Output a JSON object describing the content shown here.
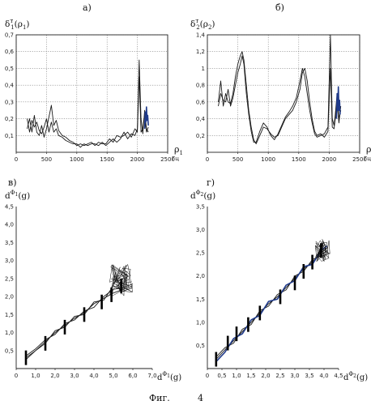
{
  "figure_caption": {
    "word": "Фиг.",
    "number": "4"
  },
  "chart_data": [
    {
      "type": "line",
      "panel_label": "а)",
      "ylabel_main": "δ",
      "ylabel_sup": "т",
      "ylabel_sub": "1",
      "ylabel_arg": "(ρ",
      "ylabel_arg_sub": "1",
      "ylabel_close": ")",
      "xlabel": "ρ",
      "xlabel_sub": "1",
      "xunit": "Гц",
      "xlim": [
        0,
        2500
      ],
      "ylim": [
        0,
        0.7
      ],
      "xticks": [
        0,
        500,
        1000,
        1500,
        2000,
        2500
      ],
      "xtick_labels": [
        "0",
        "500",
        "1000",
        "1500",
        "2000",
        "2500"
      ],
      "yticks": [
        0.1,
        0.2,
        0.3,
        0.4,
        0.5,
        0.6,
        0.7
      ],
      "ytick_labels": [
        "0,1",
        "0,2",
        "0,3",
        "0,4",
        "0,5",
        "0,6",
        "0,7"
      ],
      "grid": true,
      "series": [
        {
          "color": "#1a1a1a",
          "x": [
            180,
            220,
            260,
            300,
            340,
            380,
            420,
            460,
            500,
            540,
            580,
            620,
            660,
            700,
            760,
            820,
            880,
            940,
            1000,
            1060,
            1120,
            1180,
            1240,
            1300,
            1360,
            1420,
            1480,
            1540,
            1600,
            1660,
            1720,
            1780,
            1840,
            1900,
            1960,
            2000,
            2030,
            2060,
            2090,
            2100,
            2120,
            2150,
            2180
          ],
          "y": [
            0.14,
            0.2,
            0.12,
            0.22,
            0.12,
            0.1,
            0.16,
            0.09,
            0.14,
            0.21,
            0.28,
            0.16,
            0.19,
            0.13,
            0.1,
            0.09,
            0.07,
            0.06,
            0.04,
            0.05,
            0.04,
            0.05,
            0.06,
            0.04,
            0.06,
            0.05,
            0.05,
            0.08,
            0.06,
            0.1,
            0.09,
            0.1,
            0.12,
            0.09,
            0.14,
            0.12,
            0.45,
            0.12,
            0.14,
            0.18,
            0.22,
            0.12,
            0.15
          ]
        },
        {
          "color": "#1a1a1a",
          "x": [
            180,
            220,
            260,
            300,
            340,
            380,
            420,
            460,
            500,
            540,
            580,
            620,
            660,
            700,
            760,
            820,
            880,
            940,
            1000,
            1060,
            1120,
            1180,
            1240,
            1300,
            1360,
            1420,
            1480,
            1540,
            1600,
            1660,
            1720,
            1780,
            1840,
            1900,
            1960,
            2000,
            2030,
            2060,
            2090,
            2100,
            2120,
            2150,
            2180
          ],
          "y": [
            0.2,
            0.12,
            0.19,
            0.15,
            0.18,
            0.13,
            0.11,
            0.15,
            0.2,
            0.12,
            0.18,
            0.12,
            0.14,
            0.1,
            0.09,
            0.07,
            0.06,
            0.05,
            0.05,
            0.03,
            0.05,
            0.04,
            0.05,
            0.05,
            0.04,
            0.06,
            0.04,
            0.06,
            0.08,
            0.06,
            0.08,
            0.12,
            0.08,
            0.11,
            0.1,
            0.14,
            0.55,
            0.2,
            0.11,
            0.16,
            0.25,
            0.14,
            0.12
          ]
        },
        {
          "color": "#1f3a8a",
          "x": [
            2120,
            2130,
            2140,
            2150,
            2160,
            2170,
            2180
          ],
          "y": [
            0.14,
            0.24,
            0.18,
            0.27,
            0.19,
            0.22,
            0.16
          ]
        }
      ]
    },
    {
      "type": "line",
      "panel_label": "б)",
      "ylabel_main": "δ",
      "ylabel_sup": "т",
      "ylabel_sub": "2",
      "ylabel_arg": "(ρ",
      "ylabel_arg_sub": "2",
      "ylabel_close": ")",
      "xlabel": "ρ",
      "xlabel_sub": "2",
      "xunit": "Гц",
      "xlim": [
        0,
        2500
      ],
      "ylim": [
        0,
        1.4
      ],
      "xticks": [
        0,
        500,
        1000,
        1500,
        2000,
        2500
      ],
      "xtick_labels": [
        "0",
        "500",
        "1000",
        "1500",
        "2000",
        "2500"
      ],
      "yticks": [
        0.2,
        0.4,
        0.6,
        0.8,
        1.0,
        1.2,
        1.4
      ],
      "ytick_labels": [
        "0,2",
        "0,4",
        "0,6",
        "0,8",
        "1",
        "1,2",
        "1,4"
      ],
      "grid": true,
      "series": [
        {
          "color": "#1a1a1a",
          "x": [
            180,
            220,
            260,
            300,
            340,
            380,
            420,
            460,
            500,
            540,
            570,
            600,
            640,
            680,
            720,
            760,
            800,
            860,
            920,
            980,
            1040,
            1100,
            1160,
            1220,
            1280,
            1340,
            1400,
            1460,
            1520,
            1560,
            1600,
            1640,
            1680,
            1720,
            1760,
            1800,
            1860,
            1920,
            1980,
            2020,
            2050,
            2080,
            2100,
            2130,
            2160,
            2190
          ],
          "y": [
            0.6,
            0.85,
            0.55,
            0.7,
            0.6,
            0.58,
            0.7,
            0.9,
            1.05,
            1.15,
            1.2,
            1.1,
            0.8,
            0.5,
            0.3,
            0.15,
            0.1,
            0.2,
            0.3,
            0.28,
            0.22,
            0.18,
            0.2,
            0.3,
            0.4,
            0.45,
            0.5,
            0.6,
            0.75,
            0.95,
            1.0,
            0.85,
            0.6,
            0.4,
            0.25,
            0.2,
            0.22,
            0.18,
            0.25,
            1.0,
            0.3,
            0.28,
            0.4,
            0.6,
            0.35,
            0.55
          ]
        },
        {
          "color": "#1a1a1a",
          "x": [
            180,
            220,
            260,
            300,
            340,
            380,
            420,
            460,
            500,
            540,
            570,
            600,
            640,
            680,
            720,
            760,
            800,
            860,
            920,
            980,
            1040,
            1100,
            1160,
            1220,
            1280,
            1340,
            1400,
            1460,
            1520,
            1560,
            1600,
            1640,
            1680,
            1720,
            1760,
            1800,
            1860,
            1920,
            1980,
            2020,
            2050,
            2080,
            2100,
            2130,
            2160,
            2190
          ],
          "y": [
            0.55,
            0.7,
            0.62,
            0.6,
            0.75,
            0.55,
            0.65,
            0.8,
            0.95,
            1.05,
            1.15,
            1.05,
            0.7,
            0.45,
            0.25,
            0.12,
            0.12,
            0.25,
            0.35,
            0.3,
            0.2,
            0.15,
            0.22,
            0.32,
            0.42,
            0.48,
            0.55,
            0.65,
            0.85,
            1.0,
            0.9,
            0.7,
            0.5,
            0.35,
            0.22,
            0.18,
            0.2,
            0.22,
            0.3,
            1.4,
            0.4,
            0.32,
            0.45,
            0.7,
            0.4,
            0.5
          ]
        },
        {
          "color": "#1f3a8a",
          "x": [
            2120,
            2130,
            2140,
            2150,
            2160,
            2170,
            2180
          ],
          "y": [
            0.4,
            0.7,
            0.5,
            0.78,
            0.5,
            0.62,
            0.45
          ]
        }
      ]
    },
    {
      "type": "scatter",
      "panel_label": "в)",
      "ylabel_main": "d",
      "ylabel_sup": "Φ",
      "ylabel_sup_sub": "1",
      "ylabel_arg": "(g)",
      "xlabel_main": "d",
      "xlabel_sup": "Φ",
      "xlabel_sup_sub": "1",
      "xlabel_arg": "(g)",
      "xlim": [
        0,
        7.0
      ],
      "ylim": [
        0,
        4.5
      ],
      "xticks": [
        0,
        1.0,
        2.0,
        3.0,
        4.0,
        5.0,
        6.0,
        7.0
      ],
      "xtick_labels": [
        "0",
        "1,0",
        "2,0",
        "3,0",
        "4,0",
        "5,0",
        "6,0",
        "7,0"
      ],
      "yticks": [
        0.5,
        1.0,
        1.5,
        2.0,
        2.5,
        3.0,
        3.5,
        4.0,
        4.5
      ],
      "ytick_labels": [
        "0,5",
        "1,0",
        "1,5",
        "2,0",
        "2,5",
        "3,0",
        "3,5",
        "4,0",
        "4,5"
      ],
      "grid": false,
      "series": [
        {
          "color": "#1a1a1a",
          "x": [
            0.5,
            1.0,
            1.5,
            2.0,
            2.5,
            3.0,
            3.5,
            4.0,
            4.5,
            5.0,
            5.5,
            6.0
          ],
          "y": [
            0.3,
            0.5,
            0.75,
            1.0,
            1.2,
            1.4,
            1.55,
            1.8,
            1.95,
            2.1,
            2.2,
            2.3
          ]
        },
        {
          "color": "#1a1a1a",
          "x": [
            0.5,
            1.0,
            1.5,
            2.0,
            2.5,
            3.0,
            3.5,
            4.0,
            4.5,
            5.0,
            5.5,
            6.0
          ],
          "y": [
            0.35,
            0.55,
            0.8,
            0.95,
            1.25,
            1.35,
            1.6,
            1.7,
            2.0,
            2.2,
            2.25,
            2.35
          ]
        },
        {
          "color": "#1a1a1a",
          "x": [
            0.5,
            1.0,
            1.5,
            2.0,
            2.5,
            3.0,
            3.5,
            4.0,
            4.5,
            5.0,
            5.5,
            6.0
          ],
          "y": [
            0.25,
            0.5,
            0.7,
            1.05,
            1.15,
            1.45,
            1.5,
            1.85,
            1.9,
            2.3,
            2.15,
            2.25
          ]
        }
      ],
      "cluster": {
        "x": [
          4.8,
          6.0
        ],
        "y": [
          2.0,
          2.9
        ]
      },
      "markers": [
        {
          "x": 0.5,
          "y": 0.3
        },
        {
          "x": 1.5,
          "y": 0.7
        },
        {
          "x": 2.5,
          "y": 1.15
        },
        {
          "x": 3.5,
          "y": 1.5
        },
        {
          "x": 4.4,
          "y": 1.85
        },
        {
          "x": 4.9,
          "y": 2.05
        },
        {
          "x": 5.4,
          "y": 2.3
        }
      ]
    },
    {
      "type": "scatter",
      "panel_label": "г)",
      "ylabel_main": "d",
      "ylabel_sup": "Φ",
      "ylabel_sup_sub": "2",
      "ylabel_arg": "(g)",
      "xlabel_main": "d",
      "xlabel_sup": "Φ",
      "xlabel_sup_sub": "2",
      "xlabel_arg": "(g)",
      "xlim": [
        0,
        4.5
      ],
      "ylim": [
        0,
        3.5
      ],
      "xticks": [
        0,
        0.5,
        1.0,
        1.5,
        2.0,
        2.5,
        3.0,
        3.5,
        4.0,
        4.5
      ],
      "xtick_labels": [
        "0",
        "0,5",
        "1,0",
        "1,5",
        "2,0",
        "2,5",
        "3,0",
        "3,5",
        "4,0",
        "4,5"
      ],
      "yticks": [
        0.5,
        1.0,
        1.5,
        2.0,
        2.5,
        3.0,
        3.5
      ],
      "ytick_labels": [
        "0,5",
        "1,0",
        "1,5",
        "2,0",
        "2,5",
        "3,0",
        "3,5"
      ],
      "grid": false,
      "series": [
        {
          "color": "#1a1a1a",
          "x": [
            0.3,
            0.6,
            0.9,
            1.2,
            1.5,
            1.8,
            2.1,
            2.4,
            2.7,
            3.0,
            3.3,
            3.6,
            3.9,
            4.1
          ],
          "y": [
            0.2,
            0.4,
            0.6,
            0.8,
            1.0,
            1.2,
            1.4,
            1.55,
            1.75,
            1.95,
            2.15,
            2.3,
            2.5,
            2.6
          ]
        },
        {
          "color": "#1a1a1a",
          "x": [
            0.3,
            0.6,
            0.9,
            1.2,
            1.5,
            1.8,
            2.1,
            2.4,
            2.7,
            3.0,
            3.3,
            3.6,
            3.9,
            4.1
          ],
          "y": [
            0.25,
            0.45,
            0.55,
            0.85,
            0.95,
            1.25,
            1.35,
            1.6,
            1.7,
            2.0,
            2.1,
            2.35,
            2.45,
            2.55
          ]
        },
        {
          "color": "#1f3a8a",
          "x": [
            0.3,
            0.6,
            0.9,
            1.2,
            1.5,
            1.8,
            2.1,
            2.4,
            2.7,
            3.0,
            3.3,
            3.6,
            3.9,
            4.1
          ],
          "y": [
            0.15,
            0.35,
            0.65,
            0.75,
            1.05,
            1.15,
            1.45,
            1.5,
            1.8,
            1.9,
            2.2,
            2.25,
            2.55,
            2.65
          ]
        }
      ],
      "cluster": {
        "x": [
          3.7,
          4.2
        ],
        "y": [
          2.3,
          2.8
        ]
      },
      "markers": [
        {
          "x": 0.3,
          "y": 0.2
        },
        {
          "x": 0.7,
          "y": 0.55
        },
        {
          "x": 1.0,
          "y": 0.75
        },
        {
          "x": 1.4,
          "y": 0.95
        },
        {
          "x": 1.8,
          "y": 1.2
        },
        {
          "x": 2.5,
          "y": 1.55
        },
        {
          "x": 3.0,
          "y": 1.85
        },
        {
          "x": 3.3,
          "y": 2.1
        },
        {
          "x": 3.6,
          "y": 2.3
        },
        {
          "x": 3.9,
          "y": 2.55
        }
      ]
    }
  ]
}
